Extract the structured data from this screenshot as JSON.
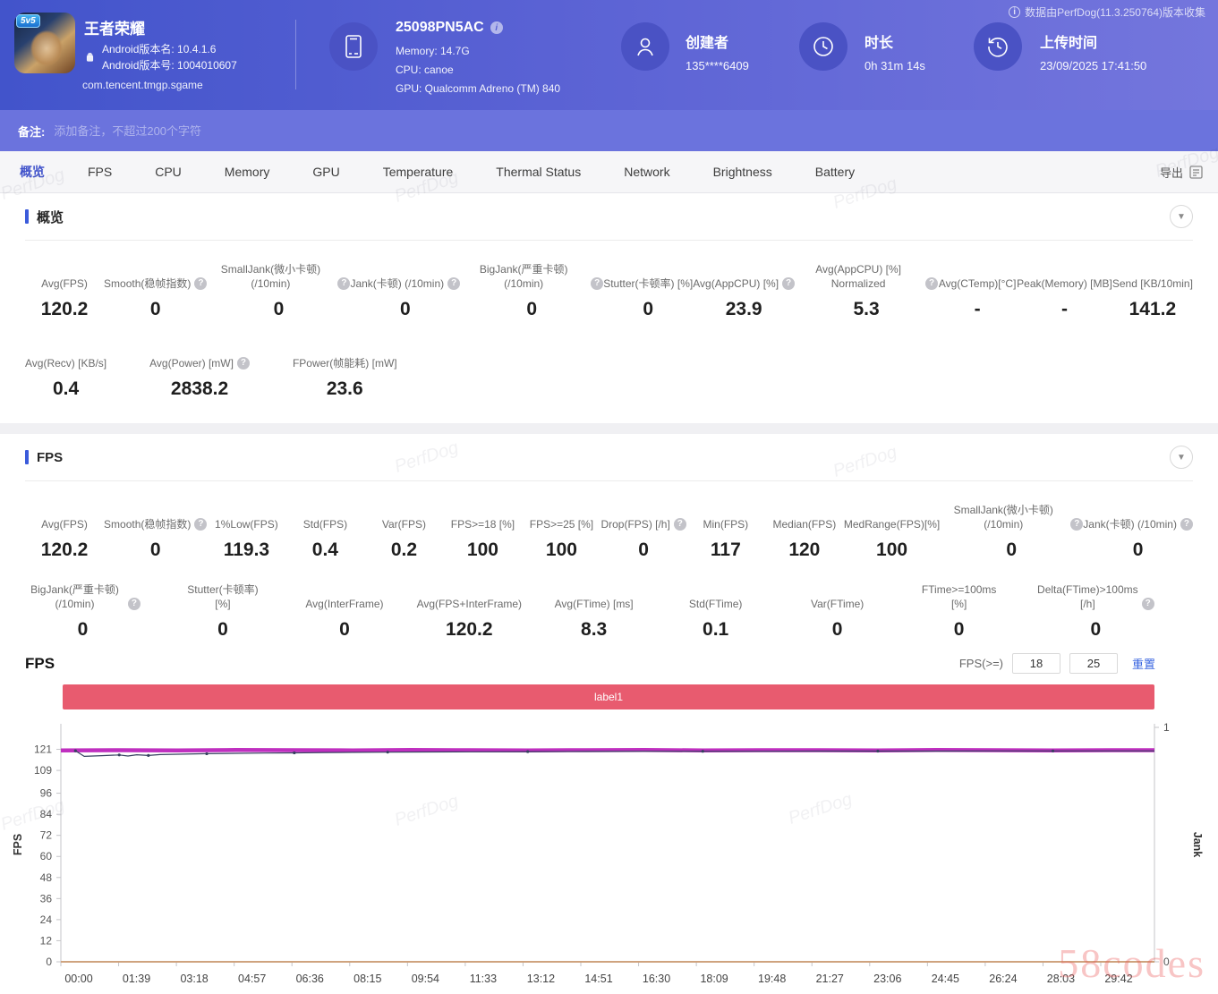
{
  "header": {
    "game": {
      "title": "王者荣耀",
      "icon_badge": "5v5",
      "android_version_name": "Android版本名: 10.4.1.6",
      "android_version_code": "Android版本号: 1004010607",
      "package": "com.tencent.tmgp.sgame"
    },
    "device": {
      "name": "25098PN5AC",
      "memory": "Memory: 14.7G",
      "cpu": "CPU: canoe",
      "gpu": "GPU: Qualcomm Adreno (TM) 840"
    },
    "creator": {
      "label": "创建者",
      "value": "135****6409"
    },
    "duration": {
      "label": "时长",
      "value": "0h 31m 14s"
    },
    "upload": {
      "label": "上传时间",
      "value": "23/09/2025 17:41:50"
    },
    "collect_note": "数据由PerfDog(11.3.250764)版本收集"
  },
  "note_bar": {
    "label": "备注:",
    "placeholder": "添加备注，不超过200个字符"
  },
  "tabs": {
    "items": [
      "概览",
      "FPS",
      "CPU",
      "Memory",
      "GPU",
      "Temperature",
      "Thermal Status",
      "Network",
      "Brightness",
      "Battery"
    ],
    "active": "概览",
    "export_label": "导出"
  },
  "overview": {
    "title": "概览",
    "rows": [
      [
        {
          "label": "Avg(FPS)",
          "value": "120.2",
          "info": false
        },
        {
          "label": "Smooth(稳帧指数)",
          "value": "0",
          "info": true
        },
        {
          "label": "SmallJank(微小卡顿) (/10min)",
          "value": "0",
          "info": true
        },
        {
          "label": "Jank(卡顿) (/10min)",
          "value": "0",
          "info": true
        },
        {
          "label": "BigJank(严重卡顿) (/10min)",
          "value": "0",
          "info": true
        },
        {
          "label": "Stutter(卡顿率) [%]",
          "value": "0",
          "info": false
        },
        {
          "label": "Avg(AppCPU) [%]",
          "value": "23.9",
          "info": true
        },
        {
          "label": "Avg(AppCPU) [%] Normalized",
          "value": "5.3",
          "info": true
        },
        {
          "label": "Avg(CTemp)[°C]",
          "value": "-",
          "info": false
        },
        {
          "label": "Peak(Memory) [MB]",
          "value": "-",
          "info": false
        },
        {
          "label": "Send [KB/10min]",
          "value": "141.2",
          "info": false
        }
      ],
      [
        {
          "label": "Avg(Recv) [KB/s]",
          "value": "0.4",
          "info": false
        },
        {
          "label": "Avg(Power) [mW]",
          "value": "2838.2",
          "info": true
        },
        {
          "label": "FPower(帧能耗) [mW]",
          "value": "23.6",
          "info": false
        }
      ]
    ]
  },
  "fps_section": {
    "title": "FPS",
    "rows": [
      [
        {
          "label": "Avg(FPS)",
          "value": "120.2",
          "info": false
        },
        {
          "label": "Smooth(稳帧指数)",
          "value": "0",
          "info": true
        },
        {
          "label": "1%Low(FPS)",
          "value": "119.3",
          "info": false
        },
        {
          "label": "Std(FPS)",
          "value": "0.4",
          "info": false
        },
        {
          "label": "Var(FPS)",
          "value": "0.2",
          "info": false
        },
        {
          "label": "FPS>=18 [%]",
          "value": "100",
          "info": false
        },
        {
          "label": "FPS>=25 [%]",
          "value": "100",
          "info": false
        },
        {
          "label": "Drop(FPS) [/h]",
          "value": "0",
          "info": true
        },
        {
          "label": "Min(FPS)",
          "value": "117",
          "info": false
        },
        {
          "label": "Median(FPS)",
          "value": "120",
          "info": false
        },
        {
          "label": "MedRange(FPS)[%]",
          "value": "100",
          "info": false
        },
        {
          "label": "SmallJank(微小卡顿) (/10min)",
          "value": "0",
          "info": true
        },
        {
          "label": "Jank(卡顿) (/10min)",
          "value": "0",
          "info": true
        }
      ],
      [
        {
          "label": "BigJank(严重卡顿) (/10min)",
          "value": "0",
          "info": true
        },
        {
          "label": "Stutter(卡顿率) [%]",
          "value": "0",
          "info": false
        },
        {
          "label": "Avg(InterFrame)",
          "value": "0",
          "info": false
        },
        {
          "label": "Avg(FPS+InterFrame)",
          "value": "120.2",
          "info": false
        },
        {
          "label": "Avg(FTime) [ms]",
          "value": "8.3",
          "info": false
        },
        {
          "label": "Std(FTime)",
          "value": "0.1",
          "info": false
        },
        {
          "label": "Var(FTime)",
          "value": "0",
          "info": false
        },
        {
          "label": "FTime>=100ms [%]",
          "value": "0",
          "info": false
        },
        {
          "label": "Delta(FTime)>100ms [/h]",
          "value": "0",
          "info": true
        }
      ]
    ]
  },
  "fps_chart": {
    "title": "FPS",
    "threshold_label": "FPS(>=)",
    "threshold_values": [
      "18",
      "25"
    ],
    "reset_label": "重置"
  },
  "chart_data": {
    "type": "line",
    "title": "FPS timeline",
    "annotation_band": {
      "label": "label1",
      "color": "#e85b6f"
    },
    "x_axis": {
      "unit": "mm:ss",
      "tick_labels": [
        "00:00",
        "01:39",
        "03:18",
        "04:57",
        "06:36",
        "08:15",
        "09:54",
        "11:33",
        "13:12",
        "14:51",
        "16:30",
        "18:09",
        "19:48",
        "21:27",
        "23:06",
        "24:45",
        "26:24",
        "28:03",
        "29:42"
      ],
      "tick_seconds": [
        0,
        99,
        198,
        297,
        396,
        495,
        594,
        693,
        792,
        891,
        990,
        1089,
        1188,
        1287,
        1386,
        1485,
        1584,
        1683,
        1782
      ],
      "max_seconds": 1874
    },
    "y_axis_left": {
      "label": "FPS",
      "ticks": [
        121,
        109,
        96,
        84,
        72,
        60,
        48,
        36,
        24,
        12,
        0
      ],
      "min": 0,
      "max": 133.5
    },
    "y_axis_right": {
      "label": "Jank",
      "ticks": [
        1,
        0
      ],
      "min": 0,
      "max": 1
    },
    "grid": false,
    "legend": "none",
    "series": [
      {
        "name": "FPS",
        "color": "#bf2fbf",
        "width": 4.5,
        "axis": "left",
        "markers": false,
        "points": [
          [
            0,
            120.4
          ],
          [
            100,
            120.5
          ],
          [
            200,
            120.4
          ],
          [
            300,
            120.6
          ],
          [
            400,
            120.5
          ],
          [
            500,
            120.4
          ],
          [
            600,
            120.6
          ],
          [
            700,
            120.5
          ],
          [
            800,
            120.4
          ],
          [
            900,
            120.5
          ],
          [
            1000,
            120.6
          ],
          [
            1100,
            120.4
          ],
          [
            1200,
            120.5
          ],
          [
            1300,
            120.5
          ],
          [
            1400,
            120.4
          ],
          [
            1500,
            120.6
          ],
          [
            1600,
            120.5
          ],
          [
            1700,
            120.4
          ],
          [
            1800,
            120.5
          ],
          [
            1874,
            120.5
          ]
        ]
      },
      {
        "name": "FPS-trend",
        "color": "#35425f",
        "width": 1.2,
        "axis": "left",
        "markers": true,
        "points": [
          [
            25,
            120.2
          ],
          [
            40,
            117.0
          ],
          [
            70,
            117.4
          ],
          [
            100,
            117.8
          ],
          [
            115,
            117.2
          ],
          [
            130,
            117.9
          ],
          [
            150,
            117.5
          ],
          [
            170,
            118.0
          ],
          [
            200,
            118.2
          ],
          [
            250,
            118.5
          ],
          [
            300,
            118.7
          ],
          [
            350,
            118.9
          ],
          [
            400,
            119.0
          ],
          [
            450,
            119.2
          ],
          [
            500,
            119.3
          ],
          [
            560,
            119.4
          ],
          [
            620,
            119.5
          ],
          [
            700,
            119.6
          ],
          [
            800,
            119.7
          ],
          [
            900,
            119.8
          ],
          [
            1000,
            119.9
          ],
          [
            1100,
            119.9
          ],
          [
            1200,
            119.9
          ],
          [
            1300,
            120.0
          ],
          [
            1400,
            120.0
          ],
          [
            1500,
            120.0
          ],
          [
            1600,
            120.1
          ],
          [
            1700,
            120.1
          ],
          [
            1800,
            120.1
          ],
          [
            1874,
            120.1
          ]
        ]
      },
      {
        "name": "Jank",
        "color": "#cfa37e",
        "width": 2,
        "axis": "right",
        "markers": false,
        "points": [
          [
            0,
            0
          ],
          [
            1874,
            0
          ]
        ]
      }
    ]
  },
  "watermarks": {
    "brand": "58codes",
    "tile": "PerfDog"
  }
}
